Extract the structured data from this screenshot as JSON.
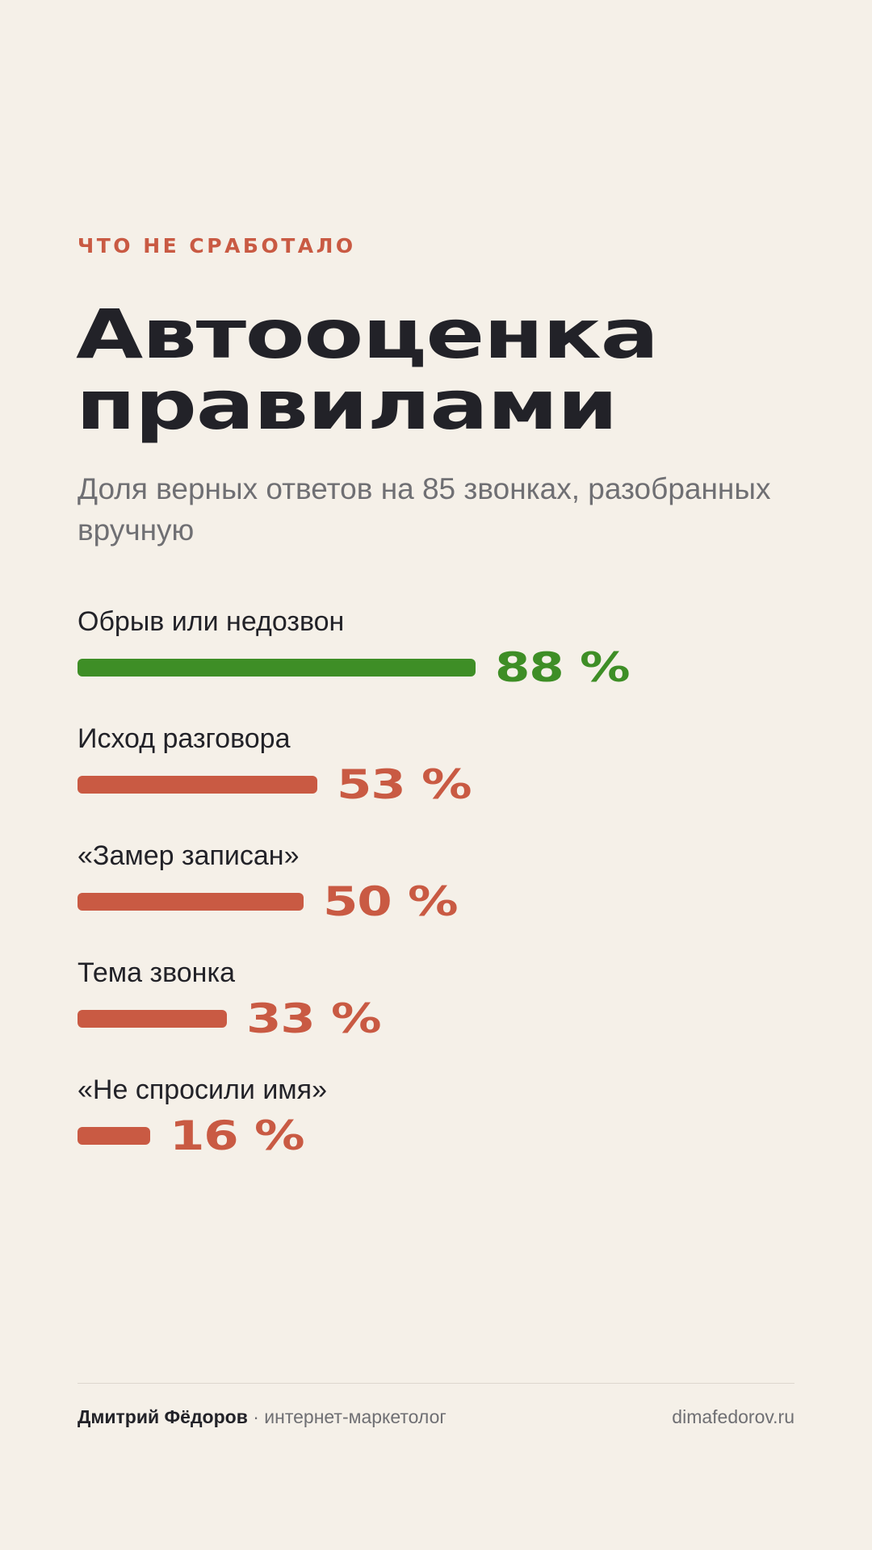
{
  "eyebrow": "ЧТО НЕ СРАБОТАЛО",
  "title_lines": [
    "Автооценка",
    "правилами"
  ],
  "subtitle": "Доля верных ответов на 85 звонках, разобранных вручную",
  "colors": {
    "background": "#f5f0e8",
    "accent": "#c95a43",
    "good": "#3e8e26",
    "text": "#222228",
    "muted": "#6f6f73"
  },
  "chart_data": {
    "type": "bar",
    "orientation": "horizontal",
    "categories": [
      "Обрыв или недозвон",
      "Исход разговора",
      "«Замер записан»",
      "Тема звонка",
      "«Не спросили имя»"
    ],
    "values": [
      88,
      53,
      50,
      33,
      16
    ],
    "value_labels": [
      "88 %",
      "53 %",
      "50 %",
      "33 %",
      "16 %"
    ],
    "bar_colors": [
      "#3e8e26",
      "#c95a43",
      "#c95a43",
      "#c95a43",
      "#c95a43"
    ],
    "unit": "%",
    "xlim": [
      0,
      100
    ],
    "grid": false
  },
  "footer": {
    "name": "Дмитрий Фёдоров",
    "separator": " · ",
    "role": "интернет-маркетолог",
    "site": "dimafedorov.ru"
  }
}
